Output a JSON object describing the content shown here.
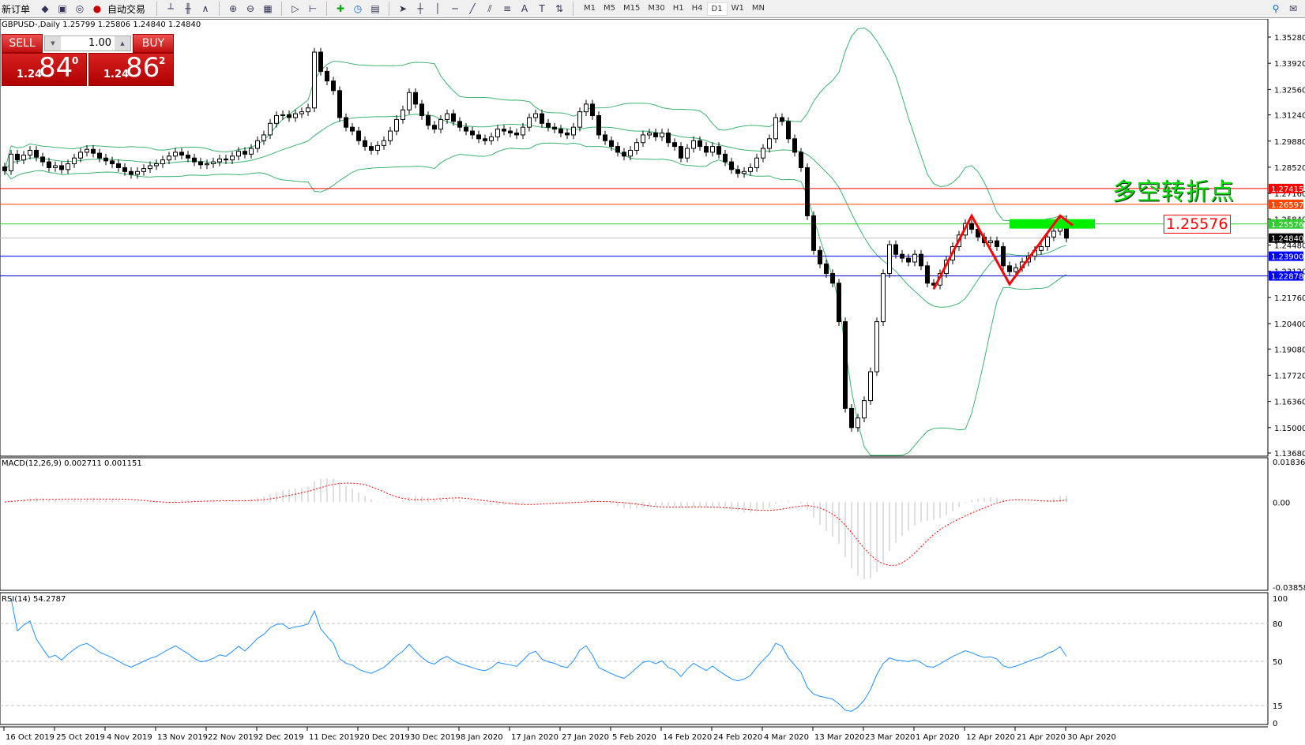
{
  "toolbar": {
    "new_order": "新订单",
    "auto_trading": "自动交易",
    "timeframes": [
      "M1",
      "M5",
      "M15",
      "M30",
      "H1",
      "H4",
      "D1",
      "W1",
      "MN"
    ],
    "active_timeframe": "D1"
  },
  "symbol_header": "GBPUSD-,Daily  1.25799 1.25806 1.24840 1.24840",
  "trade_panel": {
    "sell": "SELL",
    "buy": "BUY",
    "lot": "1.00",
    "bid": {
      "small": "1.24",
      "big": "84",
      "pip": "0"
    },
    "ask": {
      "small": "1.24",
      "big": "86",
      "pip": "2"
    }
  },
  "annotation": {
    "text": "多空转折点",
    "level_label": "1.25576"
  },
  "macd_label": "MACD(12,26,9) 0.002711 0.001151",
  "rsi_label": "RSI(14) 54.2787",
  "chart_data": {
    "type": "candlestick",
    "symbol": "GBPUSD-",
    "timeframe": "Daily",
    "last_ohlc": [
      1.25799,
      1.25806,
      1.2484,
      1.2484
    ],
    "closes": [
      1.2834,
      1.292,
      1.289,
      1.2915,
      1.294,
      1.2905,
      1.288,
      1.285,
      1.286,
      1.284,
      1.287,
      1.29,
      1.293,
      1.2945,
      1.2925,
      1.29,
      1.2885,
      1.287,
      1.285,
      1.283,
      1.2815,
      1.283,
      1.2845,
      1.286,
      1.287,
      1.289,
      1.291,
      1.293,
      1.2915,
      1.29,
      1.288,
      1.2865,
      1.287,
      1.288,
      1.2895,
      1.289,
      1.291,
      1.2935,
      1.292,
      1.295,
      1.299,
      1.302,
      1.308,
      1.312,
      1.3125,
      1.311,
      1.313,
      1.314,
      1.316,
      1.345,
      1.335,
      1.33,
      1.325,
      1.311,
      1.306,
      1.304,
      1.299,
      1.296,
      1.294,
      1.2965,
      1.299,
      1.304,
      1.31,
      1.315,
      1.324,
      1.318,
      1.312,
      1.307,
      1.305,
      1.31,
      1.313,
      1.309,
      1.306,
      1.304,
      1.302,
      1.3,
      1.299,
      1.301,
      1.305,
      1.304,
      1.303,
      1.302,
      1.306,
      1.311,
      1.313,
      1.308,
      1.306,
      1.305,
      1.303,
      1.302,
      1.306,
      1.314,
      1.318,
      1.312,
      1.302,
      1.299,
      1.296,
      1.293,
      1.291,
      1.294,
      1.298,
      1.302,
      1.303,
      1.301,
      1.303,
      1.298,
      1.296,
      1.29,
      1.295,
      1.299,
      1.296,
      1.293,
      1.296,
      1.292,
      1.288,
      1.284,
      1.282,
      1.283,
      1.285,
      1.29,
      1.295,
      1.3,
      1.311,
      1.309,
      1.3,
      1.293,
      1.285,
      1.26,
      1.242,
      1.235,
      1.23,
      1.225,
      1.205,
      1.16,
      1.15,
      1.155,
      1.164,
      1.179,
      1.205,
      1.23,
      1.245,
      1.24,
      1.238,
      1.236,
      1.24,
      1.234,
      1.225,
      1.224,
      1.23,
      1.237,
      1.244,
      1.25,
      1.256,
      1.253,
      1.249,
      1.246,
      1.247,
      1.244,
      1.234,
      1.231,
      1.233,
      1.236,
      1.239,
      1.242,
      1.244,
      1.249,
      1.252,
      1.258,
      1.2484
    ],
    "price_ticks": [
      "1.35280",
      "1.33920",
      "1.32560",
      "1.31240",
      "1.29880",
      "1.28520",
      "1.27160",
      "1.25840",
      "1.24480",
      "1.23120",
      "1.21760",
      "1.20400",
      "1.19080",
      "1.17720",
      "1.16360",
      "1.15000",
      "1.13680"
    ],
    "ylim": [
      1.1368,
      1.3528
    ],
    "date_labels": [
      "16 Oct 2019",
      "25 Oct 2019",
      "4 Nov 2019",
      "13 Nov 2019",
      "22 Nov 2019",
      "2 Dec 2019",
      "11 Dec 2019",
      "20 Dec 2019",
      "30 Dec 2019",
      "8 Jan 2020",
      "17 Jan 2020",
      "27 Jan 2020",
      "5 Feb 2020",
      "14 Feb 2020",
      "24 Feb 2020",
      "4 Mar 2020",
      "13 Mar 2020",
      "23 Mar 2020",
      "1 Apr 2020",
      "12 Apr 2020",
      "21 Apr 2020",
      "30 Apr 2020"
    ],
    "hlines": [
      {
        "price": "1.27415",
        "color": "#ff0000",
        "label_bg": "#ff0000"
      },
      {
        "price": "1.26597",
        "color": "#ff4500",
        "label_bg": "#ff4500"
      },
      {
        "price": "1.25576",
        "color": "#32cd32",
        "label_bg": "#32cd32"
      },
      {
        "price": "1.24840",
        "color": "#c0c0c0",
        "label_bg": "#000000"
      },
      {
        "price": "1.23900",
        "color": "#0000ff",
        "label_bg": "#0000ff"
      },
      {
        "price": "1.22878",
        "color": "#0000cc",
        "label_bg": "#0000ff"
      }
    ],
    "bollinger": {
      "period": 20,
      "deviation": 2,
      "color": "#3cb371"
    },
    "macd": {
      "fast": 12,
      "slow": 26,
      "signal": 9,
      "scale_top": "0.018369",
      "zero": "0.00",
      "scale_bottom": "-0.038585",
      "bar_color": "#c0c0c0",
      "signal_color": "#ff0000"
    },
    "rsi": {
      "period": 14,
      "ticks": [
        "100",
        "80",
        "50",
        "15",
        "0"
      ],
      "levels": [
        80,
        50,
        15
      ],
      "color": "#1e90ff"
    },
    "zigzag_prices": [
      1.222,
      1.26,
      1.2245,
      1.26,
      1.255
    ],
    "zigzag_bars": [
      147,
      153,
      159,
      167,
      169
    ],
    "zigzag_color": "#ff0000",
    "zone": {
      "price": 1.2558,
      "color": "#00ee00"
    }
  }
}
